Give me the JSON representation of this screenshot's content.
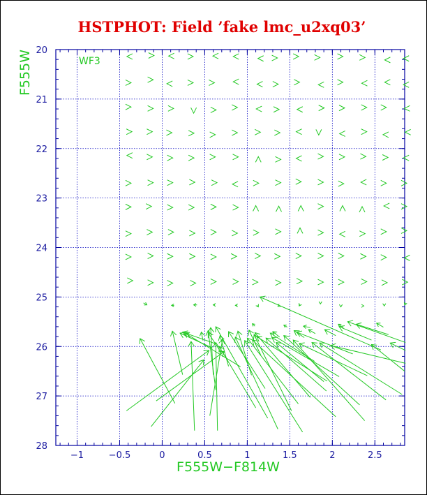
{
  "chart_data": {
    "type": "scatter",
    "title": "HSTPHOT: Field ’fake lmc_u2xq03’",
    "panel_label": "WF3",
    "xlabel": "F555W−F814W",
    "ylabel": "F555W",
    "xlim": [
      -1.25,
      2.85
    ],
    "ylim": [
      28,
      20
    ],
    "xticks": [
      -1,
      -0.5,
      0,
      0.5,
      1,
      1.5,
      2,
      2.5
    ],
    "xtick_labels": [
      "−1",
      "−0.5",
      "0",
      "0.5",
      "1",
      "1.5",
      "2",
      "2.5"
    ],
    "yticks": [
      20,
      21,
      22,
      23,
      24,
      25,
      26,
      27,
      28
    ],
    "ytick_labels": [
      "20",
      "21",
      "22",
      "23",
      "24",
      "25",
      "26",
      "27",
      "28"
    ],
    "grid": true,
    "colors": {
      "title": "#e00000",
      "axes": "#0000a0",
      "grid": "#0000c0",
      "data": "#22c822",
      "labels": "#22c822"
    },
    "glyphs": [
      [
        -0.39,
        20.14,
        -0.33,
        20.07,
        "<"
      ],
      [
        -0.12,
        20.12,
        -0.12,
        20.06,
        ">"
      ],
      [
        0.1,
        20.13,
        0.11,
        20.07,
        "<"
      ],
      [
        0.34,
        20.14,
        0.35,
        20.08,
        ">"
      ],
      [
        0.62,
        20.13,
        0.61,
        20.07,
        "<"
      ],
      [
        0.86,
        20.14,
        0.82,
        20.05,
        "<"
      ],
      [
        1.15,
        20.18,
        1.1,
        20.15,
        "<"
      ],
      [
        1.33,
        20.17,
        1.38,
        20.14,
        ">"
      ],
      [
        1.58,
        20.14,
        1.62,
        20.08,
        ">"
      ],
      [
        1.83,
        20.16,
        1.86,
        20.11,
        ">"
      ],
      [
        2.1,
        20.14,
        2.12,
        20.08,
        ">"
      ],
      [
        2.36,
        20.16,
        2.4,
        20.13,
        ">"
      ],
      [
        2.64,
        20.21,
        2.59,
        20.19,
        "<"
      ],
      [
        2.86,
        20.18,
        2.84,
        20.13,
        "<"
      ],
      [
        -0.39,
        20.67,
        -0.33,
        20.65,
        ">"
      ],
      [
        -0.13,
        20.61,
        -0.12,
        20.64,
        ">"
      ],
      [
        0.08,
        20.69,
        0.05,
        20.68,
        "<"
      ],
      [
        0.34,
        20.67,
        0.37,
        20.66,
        ">"
      ],
      [
        0.59,
        20.67,
        0.61,
        20.65,
        ">"
      ],
      [
        0.86,
        20.65,
        0.84,
        20.63,
        "<"
      ],
      [
        1.14,
        20.7,
        1.09,
        20.72,
        "<"
      ],
      [
        1.34,
        20.7,
        1.36,
        20.68,
        ">"
      ],
      [
        1.59,
        20.66,
        1.61,
        20.65,
        ">"
      ],
      [
        1.86,
        20.71,
        1.85,
        20.69,
        "<"
      ],
      [
        2.1,
        20.66,
        2.13,
        20.65,
        ">"
      ],
      [
        2.37,
        20.68,
        2.35,
        20.64,
        "<"
      ],
      [
        2.64,
        20.66,
        2.62,
        20.63,
        "<"
      ],
      [
        2.86,
        20.71,
        2.84,
        20.67,
        "<"
      ],
      [
        -0.39,
        21.16,
        -0.36,
        21.15,
        ">"
      ],
      [
        -0.13,
        21.19,
        -0.14,
        21.18,
        ">"
      ],
      [
        0.11,
        21.19,
        0.12,
        21.18,
        ">"
      ],
      [
        0.37,
        21.23,
        0.36,
        21.23,
        "v"
      ],
      [
        0.61,
        21.22,
        0.62,
        21.19,
        ">"
      ],
      [
        0.86,
        21.17,
        0.87,
        21.16,
        ">"
      ],
      [
        1.13,
        21.2,
        1.14,
        21.18,
        "<"
      ],
      [
        1.35,
        21.21,
        1.36,
        21.21,
        ">"
      ],
      [
        1.61,
        21.21,
        1.6,
        21.17,
        "<"
      ],
      [
        1.88,
        21.18,
        1.9,
        21.16,
        ">"
      ],
      [
        2.12,
        21.18,
        2.12,
        21.16,
        ">"
      ],
      [
        2.38,
        21.17,
        2.4,
        21.14,
        ">"
      ],
      [
        2.61,
        21.17,
        2.61,
        21.17,
        ">"
      ],
      [
        2.87,
        21.19,
        2.85,
        21.17,
        "<"
      ],
      [
        -0.38,
        21.66,
        -0.36,
        21.65,
        ">"
      ],
      [
        -0.14,
        21.66,
        -0.13,
        21.61,
        ">"
      ],
      [
        0.09,
        21.68,
        0.09,
        21.66,
        ">"
      ],
      [
        0.35,
        21.69,
        0.35,
        21.68,
        ">"
      ],
      [
        0.6,
        21.72,
        0.6,
        21.66,
        ">"
      ],
      [
        0.86,
        21.68,
        0.86,
        21.67,
        ">"
      ],
      [
        1.13,
        21.67,
        1.13,
        21.66,
        ">"
      ],
      [
        1.36,
        21.68,
        1.37,
        21.66,
        ">"
      ],
      [
        1.6,
        21.66,
        1.6,
        21.62,
        "<"
      ],
      [
        1.84,
        21.67,
        1.84,
        21.67,
        "v"
      ],
      [
        2.11,
        21.7,
        2.09,
        21.62,
        "<"
      ],
      [
        2.38,
        21.66,
        2.39,
        21.64,
        ">"
      ],
      [
        2.62,
        21.72,
        2.59,
        21.66,
        "<"
      ],
      [
        2.88,
        21.67,
        2.86,
        21.65,
        "<"
      ],
      [
        -0.39,
        22.14,
        -0.41,
        22.1,
        "<"
      ],
      [
        -0.14,
        22.17,
        -0.13,
        22.15,
        ">"
      ],
      [
        0.1,
        22.19,
        0.1,
        22.17,
        ">"
      ],
      [
        0.35,
        22.19,
        0.35,
        22.17,
        ">"
      ],
      [
        0.6,
        22.17,
        0.6,
        22.16,
        ">"
      ],
      [
        0.87,
        22.17,
        0.86,
        22.15,
        ">"
      ],
      [
        1.13,
        22.22,
        1.13,
        22.22,
        "^"
      ],
      [
        1.37,
        22.22,
        1.37,
        22.2,
        ">"
      ],
      [
        1.6,
        22.2,
        1.59,
        22.16,
        "<"
      ],
      [
        1.87,
        22.16,
        1.87,
        22.15,
        ">"
      ],
      [
        2.12,
        22.17,
        2.11,
        22.15,
        ">"
      ],
      [
        2.37,
        22.16,
        2.38,
        22.14,
        ">"
      ],
      [
        2.63,
        22.18,
        2.63,
        22.18,
        ">"
      ],
      [
        2.86,
        22.19,
        2.84,
        22.15,
        "<"
      ],
      [
        -0.39,
        22.7,
        -0.39,
        22.7,
        ">"
      ],
      [
        -0.13,
        22.69,
        -0.12,
        22.67,
        ">"
      ],
      [
        0.1,
        22.69,
        0.1,
        22.68,
        ">"
      ],
      [
        0.36,
        22.68,
        0.36,
        22.67,
        ">"
      ],
      [
        0.62,
        22.69,
        0.62,
        22.67,
        ">"
      ],
      [
        0.85,
        22.72,
        0.84,
        22.66,
        "<"
      ],
      [
        1.11,
        22.7,
        1.12,
        22.68,
        ">"
      ],
      [
        1.37,
        22.69,
        1.38,
        22.65,
        ">"
      ],
      [
        1.61,
        22.67,
        1.62,
        22.64,
        ">"
      ],
      [
        1.87,
        22.68,
        1.88,
        22.66,
        ">"
      ],
      [
        2.11,
        22.71,
        2.12,
        22.67,
        ">"
      ],
      [
        2.36,
        22.68,
        2.35,
        22.63,
        "<"
      ],
      [
        2.61,
        22.7,
        2.62,
        22.66,
        ">"
      ],
      [
        2.85,
        22.7,
        2.87,
        22.67,
        ">"
      ],
      [
        -0.39,
        23.18,
        -0.38,
        23.16,
        ">"
      ],
      [
        -0.15,
        23.17,
        -0.13,
        23.16,
        ">"
      ],
      [
        0.1,
        23.19,
        0.12,
        23.17,
        ">"
      ],
      [
        0.35,
        23.19,
        0.37,
        23.18,
        ">"
      ],
      [
        0.61,
        23.18,
        0.62,
        23.16,
        ">"
      ],
      [
        0.87,
        23.19,
        0.87,
        23.18,
        ">"
      ],
      [
        1.1,
        23.21,
        1.1,
        23.21,
        "^"
      ],
      [
        1.37,
        23.22,
        1.37,
        23.22,
        "^"
      ],
      [
        1.63,
        23.21,
        1.63,
        23.2,
        "^"
      ],
      [
        1.87,
        23.17,
        1.9,
        23.14,
        ">"
      ],
      [
        2.12,
        23.21,
        2.11,
        23.21,
        "^"
      ],
      [
        2.35,
        23.23,
        2.35,
        23.23,
        "^"
      ],
      [
        2.63,
        23.16,
        2.62,
        23.11,
        "<"
      ],
      [
        2.85,
        23.17,
        2.87,
        23.14,
        ">"
      ],
      [
        -0.39,
        23.72,
        -0.37,
        23.71,
        ">"
      ],
      [
        -0.14,
        23.69,
        -0.13,
        23.67,
        ">"
      ],
      [
        0.11,
        23.69,
        0.12,
        23.67,
        ">"
      ],
      [
        0.36,
        23.71,
        0.37,
        23.69,
        ">"
      ],
      [
        0.61,
        23.69,
        0.62,
        23.69,
        ">"
      ],
      [
        0.86,
        23.71,
        0.86,
        23.71,
        ">"
      ],
      [
        1.11,
        23.7,
        1.11,
        23.68,
        ">"
      ],
      [
        1.37,
        23.68,
        1.37,
        23.64,
        ">"
      ],
      [
        1.62,
        23.66,
        1.6,
        23.64,
        "^"
      ],
      [
        1.87,
        23.7,
        1.88,
        23.68,
        ">"
      ],
      [
        2.11,
        23.73,
        2.1,
        23.7,
        "<"
      ],
      [
        2.36,
        23.72,
        2.36,
        23.7,
        ">"
      ],
      [
        2.61,
        23.68,
        2.61,
        23.66,
        ">"
      ],
      [
        2.85,
        23.66,
        2.85,
        23.63,
        ">"
      ],
      [
        -0.39,
        24.19,
        -0.39,
        24.18,
        ">"
      ],
      [
        -0.13,
        24.17,
        -0.12,
        24.16,
        ">"
      ],
      [
        0.1,
        24.18,
        0.11,
        24.17,
        ">"
      ],
      [
        0.36,
        24.18,
        0.36,
        24.16,
        ">"
      ],
      [
        0.61,
        24.19,
        0.61,
        24.18,
        ">"
      ],
      [
        0.85,
        24.18,
        0.85,
        24.17,
        ">"
      ],
      [
        1.13,
        24.17,
        1.1,
        24.13,
        ">"
      ],
      [
        1.36,
        24.18,
        1.36,
        24.16,
        ">"
      ],
      [
        1.61,
        24.17,
        1.61,
        24.16,
        ">"
      ],
      [
        1.87,
        24.17,
        1.88,
        24.16,
        ">"
      ],
      [
        2.11,
        24.17,
        2.12,
        24.15,
        ">"
      ],
      [
        2.37,
        24.18,
        2.37,
        24.16,
        ">"
      ],
      [
        2.61,
        24.2,
        2.61,
        24.18,
        ">"
      ],
      [
        2.87,
        24.21,
        2.86,
        24.18,
        "<"
      ],
      [
        -0.37,
        24.67,
        -0.32,
        24.66,
        ">"
      ],
      [
        -0.13,
        24.71,
        -0.12,
        24.7,
        ">"
      ],
      [
        0.1,
        24.72,
        0.12,
        24.71,
        ">"
      ],
      [
        0.37,
        24.72,
        0.37,
        24.69,
        ">"
      ],
      [
        0.61,
        24.69,
        0.61,
        24.68,
        ">"
      ],
      [
        0.87,
        24.69,
        0.87,
        24.69,
        ">"
      ],
      [
        1.1,
        24.7,
        1.11,
        24.69,
        ">"
      ],
      [
        1.37,
        24.71,
        1.37,
        24.71,
        ">"
      ],
      [
        1.62,
        24.68,
        1.62,
        24.67,
        ">"
      ],
      [
        1.87,
        24.7,
        1.87,
        24.68,
        ">"
      ],
      [
        2.11,
        24.7,
        2.11,
        24.69,
        ">"
      ],
      [
        2.38,
        24.69,
        2.37,
        24.67,
        ">"
      ],
      [
        2.62,
        24.71,
        2.62,
        24.69,
        ">"
      ],
      [
        2.86,
        24.7,
        2.86,
        24.68,
        ">"
      ]
    ],
    "vectors": [
      [
        1.15,
        25.0,
        2.57,
        26.07
      ],
      [
        -0.18,
        25.16,
        -0.22,
        25.12
      ],
      [
        0.11,
        25.17,
        0.14,
        25.17
      ],
      [
        0.37,
        25.16,
        0.41,
        25.16
      ],
      [
        0.6,
        25.16,
        0.62,
        25.16
      ],
      [
        0.86,
        25.17,
        0.88,
        25.17
      ],
      [
        1.13,
        25.2,
        1.12,
        25.17
      ],
      [
        1.36,
        25.19,
        1.37,
        25.18
      ],
      [
        1.61,
        25.18,
        1.62,
        25.15
      ],
      [
        1.86,
        25.14,
        1.86,
        25.13
      ],
      [
        2.1,
        25.2,
        2.1,
        25.18
      ],
      [
        2.37,
        25.18,
        2.37,
        25.18
      ],
      [
        2.61,
        25.18,
        2.61,
        25.16
      ],
      [
        2.85,
        25.16,
        2.86,
        25.12
      ],
      [
        2.07,
        25.55,
        2.13,
        25.62
      ],
      [
        2.28,
        25.55,
        2.66,
        25.76
      ],
      [
        2.18,
        25.5,
        2.86,
        25.92
      ],
      [
        2.52,
        25.53,
        2.6,
        25.61
      ],
      [
        1.06,
        25.54,
        1.09,
        25.59
      ],
      [
        1.43,
        25.57,
        1.47,
        25.61
      ],
      [
        1.66,
        25.59,
        1.74,
        25.62
      ],
      [
        1.72,
        25.66,
        1.8,
        25.74
      ],
      [
        0.12,
        25.69,
        0.24,
        26.57
      ],
      [
        0.57,
        25.62,
        0.6,
        26.57
      ],
      [
        0.24,
        25.71,
        0.62,
        25.94
      ],
      [
        0.28,
        25.72,
        0.33,
        25.83
      ],
      [
        0.46,
        25.71,
        0.48,
        25.88
      ],
      [
        0.54,
        25.72,
        0.7,
        26.14
      ],
      [
        0.89,
        25.69,
        1.05,
        26.58
      ],
      [
        1.02,
        25.67,
        1.16,
        26.18
      ],
      [
        1.3,
        25.7,
        1.38,
        25.81
      ],
      [
        1.55,
        25.68,
        1.67,
        25.82
      ],
      [
        1.91,
        25.66,
        2.04,
        25.78
      ],
      [
        2.08,
        25.6,
        2.46,
        25.87
      ],
      [
        -0.26,
        25.84,
        0.15,
        27.15
      ],
      [
        0.34,
        25.9,
        0.38,
        27.7
      ],
      [
        0.63,
        25.92,
        0.65,
        27.7
      ],
      [
        0.71,
        25.85,
        0.56,
        27.4
      ],
      [
        0.68,
        25.78,
        0.78,
        26.4
      ],
      [
        0.63,
        25.6,
        1.24,
        27.45
      ],
      [
        0.78,
        25.7,
        1.21,
        26.85
      ],
      [
        0.86,
        25.81,
        1.36,
        27.67
      ],
      [
        0.97,
        25.88,
        1.65,
        27.73
      ],
      [
        1.0,
        25.83,
        1.6,
        27.16
      ],
      [
        1.06,
        25.87,
        2.04,
        27.42
      ],
      [
        1.09,
        25.72,
        1.74,
        27.03
      ],
      [
        1.11,
        25.8,
        1.94,
        26.7
      ],
      [
        1.22,
        25.83,
        1.93,
        26.9
      ],
      [
        1.29,
        25.82,
        2.08,
        26.61
      ],
      [
        1.34,
        25.92,
        1.9,
        26.71
      ],
      [
        1.43,
        25.78,
        2.32,
        27.18
      ],
      [
        1.54,
        25.87,
        2.38,
        27.5
      ],
      [
        1.61,
        25.94,
        2.41,
        26.59
      ],
      [
        1.76,
        25.92,
        2.63,
        27.08
      ],
      [
        1.85,
        25.93,
        2.82,
        26.97
      ],
      [
        1.98,
        25.98,
        2.86,
        26.34
      ],
      [
        2.46,
        25.96,
        2.85,
        26.5
      ],
      [
        2.68,
        25.93,
        2.86,
        26.08
      ],
      [
        0.55,
        26.08,
        -0.42,
        27.3
      ],
      [
        0.49,
        26.27,
        -0.13,
        27.62
      ],
      [
        0.73,
        26.1,
        -0.07,
        27.1
      ],
      [
        0.26,
        25.72,
        0.92,
        26.41
      ],
      [
        0.21,
        25.73,
        0.59,
        26.03
      ],
      [
        0.67,
        26.0,
        1.1,
        27.24
      ],
      [
        0.54,
        25.68,
        0.63,
        26.88
      ],
      [
        1.08,
        25.76,
        1.52,
        27.3
      ],
      [
        1.27,
        25.73,
        1.79,
        26.3
      ],
      [
        1.58,
        25.71,
        2.24,
        26.15
      ]
    ]
  }
}
